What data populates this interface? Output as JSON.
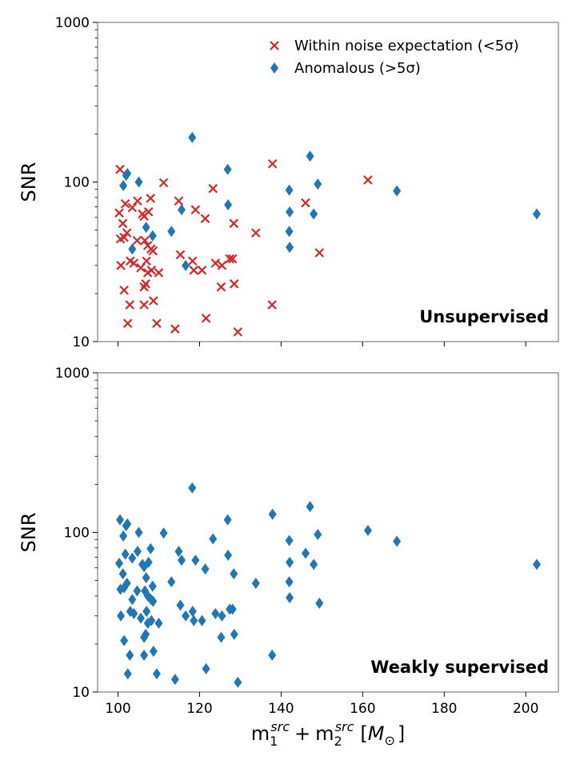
{
  "chart_data": [
    {
      "type": "scatter",
      "panel_label": "Unsupervised",
      "ylabel": "SNR",
      "yscale": "log",
      "ylim": [
        10,
        1000
      ],
      "xlim": [
        95,
        208
      ],
      "legend_position": "top-right",
      "series": [
        {
          "name": "Within noise expectation (<5σ)",
          "marker": "x",
          "color": "#d62728",
          "points": [
            [
              100.5,
              120
            ],
            [
              100.3,
              64
            ],
            [
              101.8,
              73
            ],
            [
              103.5,
              69
            ],
            [
              104.8,
              76
            ],
            [
              106.0,
              63
            ],
            [
              106.4,
              61
            ],
            [
              108.0,
              79
            ],
            [
              107.5,
              65
            ],
            [
              111.2,
              99
            ],
            [
              114.9,
              76
            ],
            [
              119.0,
              67
            ],
            [
              121.4,
              59
            ],
            [
              123.3,
              91
            ],
            [
              128.4,
              55
            ],
            [
              101.2,
              55
            ],
            [
              101.5,
              45
            ],
            [
              100.6,
              44
            ],
            [
              102.2,
              48
            ],
            [
              104.7,
              43
            ],
            [
              106.6,
              43
            ],
            [
              107.3,
              40
            ],
            [
              108.1,
              38
            ],
            [
              108.6,
              37
            ],
            [
              115.3,
              35
            ],
            [
              118.3,
              32
            ],
            [
              100.7,
              30
            ],
            [
              103.0,
              32
            ],
            [
              103.9,
              31
            ],
            [
              105.6,
              29
            ],
            [
              107.0,
              32
            ],
            [
              107.3,
              27
            ],
            [
              108.2,
              28
            ],
            [
              110.0,
              27
            ],
            [
              118.6,
              28
            ],
            [
              120.6,
              28
            ],
            [
              123.9,
              31
            ],
            [
              125.5,
              30
            ],
            [
              127.4,
              33
            ],
            [
              128.1,
              33
            ],
            [
              101.5,
              21
            ],
            [
              106.4,
              22
            ],
            [
              106.8,
              23
            ],
            [
              102.9,
              17
            ],
            [
              106.4,
              17
            ],
            [
              102.4,
              13
            ],
            [
              108.7,
              18
            ],
            [
              109.5,
              13
            ],
            [
              114.0,
              12
            ],
            [
              121.6,
              14
            ],
            [
              125.3,
              22
            ],
            [
              128.5,
              23
            ],
            [
              129.4,
              11.5
            ],
            [
              133.8,
              48
            ],
            [
              137.9,
              130
            ],
            [
              137.8,
              17
            ],
            [
              146.0,
              74
            ],
            [
              149.4,
              36
            ],
            [
              161.3,
              103
            ]
          ]
        },
        {
          "name": "Anomalous (>5σ)",
          "marker": "diamond",
          "color": "#1f77b4",
          "points": [
            [
              101.3,
              95
            ],
            [
              102.0,
              110
            ],
            [
              102.3,
              113
            ],
            [
              105.1,
              100
            ],
            [
              106.9,
              52
            ],
            [
              108.5,
              46
            ],
            [
              103.5,
              38
            ],
            [
              113.1,
              49
            ],
            [
              115.6,
              67
            ],
            [
              116.6,
              30
            ],
            [
              118.2,
              190
            ],
            [
              126.9,
              120
            ],
            [
              127.0,
              72
            ],
            [
              142.0,
              89
            ],
            [
              142.1,
              65
            ],
            [
              142.0,
              49
            ],
            [
              142.1,
              39
            ],
            [
              147.1,
              145
            ],
            [
              148.0,
              63
            ],
            [
              149.0,
              97
            ],
            [
              168.4,
              88
            ],
            [
              202.7,
              63
            ]
          ]
        }
      ]
    },
    {
      "type": "scatter",
      "panel_label": "Weakly supervised",
      "ylabel": "SNR",
      "xlabel": "m₁ˢʳᶜ + m₂ˢʳᶜ [M☉]",
      "yscale": "log",
      "ylim": [
        10,
        1000
      ],
      "xlim": [
        95,
        208
      ],
      "series": [
        {
          "name": "Anomalous (>5σ)",
          "marker": "diamond",
          "color": "#1f77b4",
          "points": [
            [
              100.5,
              120
            ],
            [
              100.3,
              64
            ],
            [
              101.8,
              73
            ],
            [
              103.5,
              69
            ],
            [
              104.8,
              76
            ],
            [
              106.0,
              63
            ],
            [
              106.4,
              61
            ],
            [
              108.0,
              79
            ],
            [
              107.5,
              65
            ],
            [
              111.2,
              99
            ],
            [
              114.9,
              76
            ],
            [
              119.0,
              67
            ],
            [
              121.4,
              59
            ],
            [
              123.3,
              91
            ],
            [
              128.4,
              55
            ],
            [
              101.2,
              55
            ],
            [
              101.5,
              45
            ],
            [
              100.6,
              44
            ],
            [
              102.2,
              48
            ],
            [
              104.7,
              43
            ],
            [
              106.6,
              43
            ],
            [
              107.3,
              40
            ],
            [
              108.1,
              38
            ],
            [
              108.6,
              37
            ],
            [
              115.3,
              35
            ],
            [
              118.3,
              32
            ],
            [
              100.7,
              30
            ],
            [
              103.0,
              32
            ],
            [
              103.9,
              31
            ],
            [
              105.6,
              29
            ],
            [
              107.0,
              32
            ],
            [
              107.3,
              27
            ],
            [
              108.2,
              28
            ],
            [
              110.0,
              27
            ],
            [
              118.6,
              28
            ],
            [
              120.6,
              28
            ],
            [
              123.9,
              31
            ],
            [
              125.5,
              30
            ],
            [
              127.4,
              33
            ],
            [
              128.1,
              33
            ],
            [
              101.5,
              21
            ],
            [
              106.4,
              22
            ],
            [
              106.8,
              23
            ],
            [
              102.9,
              17
            ],
            [
              106.4,
              17
            ],
            [
              102.4,
              13
            ],
            [
              108.7,
              18
            ],
            [
              109.5,
              13
            ],
            [
              114.0,
              12
            ],
            [
              121.6,
              14
            ],
            [
              125.3,
              22
            ],
            [
              128.5,
              23
            ],
            [
              129.4,
              11.5
            ],
            [
              133.8,
              48
            ],
            [
              137.9,
              130
            ],
            [
              137.8,
              17
            ],
            [
              146.0,
              74
            ],
            [
              149.4,
              36
            ],
            [
              161.3,
              103
            ],
            [
              101.3,
              95
            ],
            [
              102.0,
              110
            ],
            [
              102.3,
              113
            ],
            [
              105.1,
              100
            ],
            [
              106.9,
              52
            ],
            [
              108.5,
              46
            ],
            [
              103.5,
              38
            ],
            [
              113.1,
              49
            ],
            [
              115.6,
              67
            ],
            [
              116.6,
              30
            ],
            [
              118.2,
              190
            ],
            [
              126.9,
              120
            ],
            [
              127.0,
              72
            ],
            [
              142.0,
              89
            ],
            [
              142.1,
              65
            ],
            [
              142.0,
              49
            ],
            [
              142.1,
              39
            ],
            [
              147.1,
              145
            ],
            [
              148.0,
              63
            ],
            [
              149.0,
              97
            ],
            [
              168.4,
              88
            ],
            [
              202.7,
              63
            ]
          ]
        }
      ]
    }
  ],
  "axes": {
    "y_ticks": [
      "10",
      "100",
      "1000"
    ],
    "x_ticks": [
      "100",
      "120",
      "140",
      "160",
      "180",
      "200"
    ],
    "y_label": "SNR",
    "x_label_parts": {
      "m": "m",
      "sub1": "1",
      "sup": "src",
      "plus": "+",
      "sub2": "2",
      "unit_open": "[",
      "unit_m": "M",
      "unit_sub": "⊙",
      "unit_close": "]"
    }
  },
  "legend": [
    {
      "label": "Within noise expectation (<5σ)",
      "icon": "x-mark-icon",
      "color": "#d62728"
    },
    {
      "label": "Anomalous (>5σ)",
      "icon": "diamond-icon",
      "color": "#1f77b4"
    }
  ],
  "colors": {
    "noise": "#d62728",
    "anomalous": "#1f77b4",
    "frame": "#808080"
  }
}
